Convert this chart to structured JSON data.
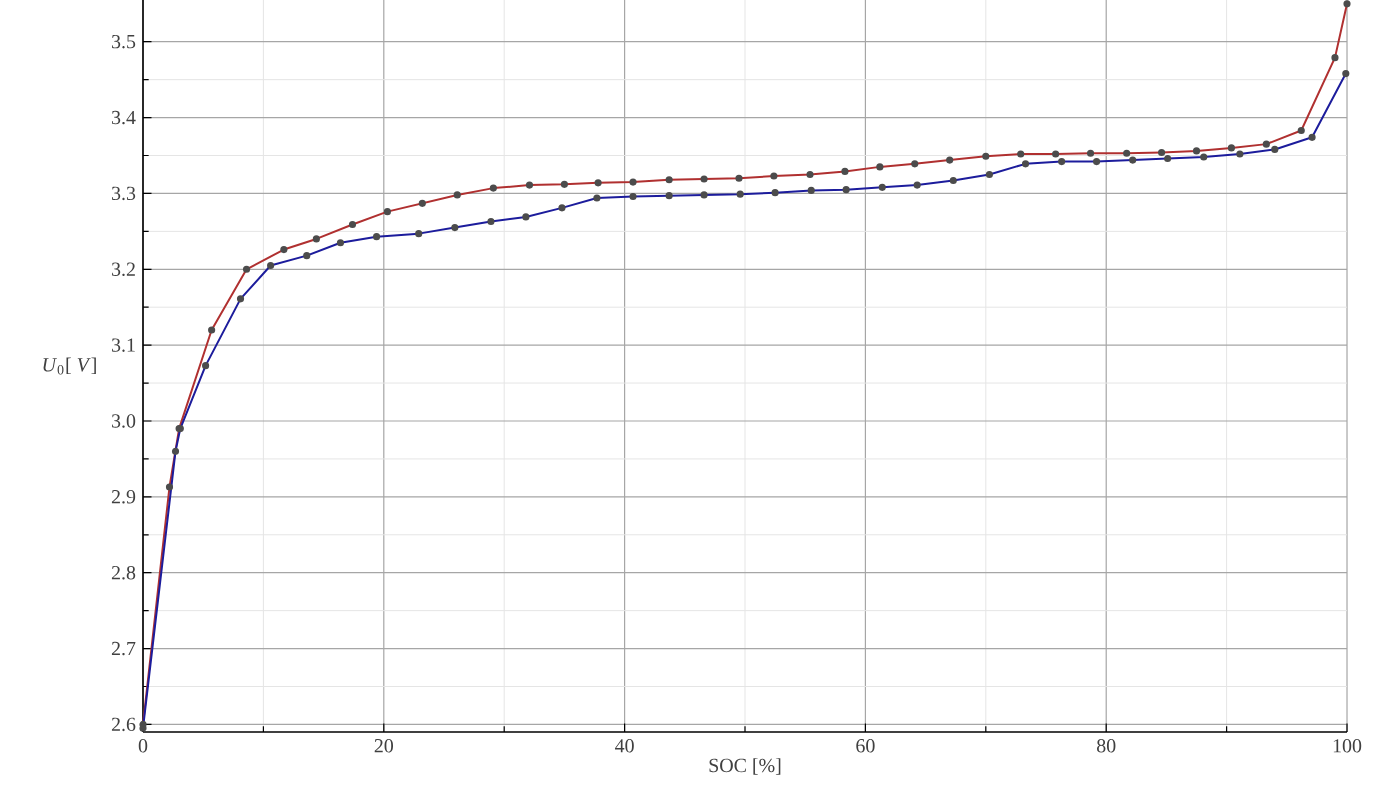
{
  "chart_data": {
    "type": "line",
    "xlabel": "SOC [%]",
    "ylabel": "*U*$_{0}$[ *V*]",
    "xlim": [
      0,
      100
    ],
    "ylim": [
      2.59,
      3.555
    ],
    "xticks": [
      0,
      20,
      40,
      60,
      80,
      100
    ],
    "yticks": [
      {
        "value": 2.6,
        "label": "2.6"
      },
      {
        "value": 2.7,
        "label": "2.7"
      },
      {
        "value": 2.8,
        "label": "2.8"
      },
      {
        "value": 2.9,
        "label": "2.9"
      },
      {
        "value": 3.0,
        "label": "3.0"
      },
      {
        "value": 3.1,
        "label": "3.1"
      },
      {
        "value": 3.2,
        "label": "3.2"
      },
      {
        "value": 3.3,
        "label": "3.3"
      },
      {
        "value": 3.4,
        "label": "3.4"
      },
      {
        "value": 3.5,
        "label": "3.5"
      }
    ],
    "grid": true,
    "marker": "circle",
    "line_style": "solid",
    "series": [
      {
        "color": "#b03030",
        "x": [
          0,
          2.2,
          3.0,
          5.7,
          8.6,
          11.7,
          14.4,
          17.4,
          20.3,
          23.2,
          26.1,
          29.1,
          32.1,
          35.0,
          37.8,
          40.7,
          43.7,
          46.6,
          49.5,
          52.4,
          55.4,
          58.3,
          61.2,
          64.1,
          67.0,
          70.0,
          72.9,
          75.8,
          78.7,
          81.7,
          84.6,
          87.5,
          90.4,
          93.3,
          96.2,
          99.0,
          100
        ],
        "values": [
          2.6,
          2.913,
          2.99,
          3.12,
          3.2,
          3.226,
          3.24,
          3.259,
          3.276,
          3.287,
          3.298,
          3.307,
          3.311,
          3.312,
          3.314,
          3.315,
          3.318,
          3.319,
          3.32,
          3.323,
          3.325,
          3.329,
          3.335,
          3.339,
          3.344,
          3.349,
          3.352,
          3.352,
          3.353,
          3.353,
          3.354,
          3.356,
          3.36,
          3.365,
          3.383,
          3.479,
          3.55
        ]
      },
      {
        "color": "#1c1c9c",
        "x": [
          0,
          2.7,
          3.1,
          5.2,
          8.1,
          10.6,
          13.6,
          16.4,
          19.4,
          22.9,
          25.9,
          28.9,
          31.8,
          34.8,
          37.7,
          40.7,
          43.7,
          46.6,
          49.6,
          52.5,
          55.5,
          58.4,
          61.4,
          64.3,
          67.3,
          70.3,
          73.3,
          76.3,
          79.2,
          82.2,
          85.1,
          88.1,
          91.1,
          94.0,
          97.1,
          99.9
        ],
        "values": [
          2.595,
          2.96,
          2.99,
          3.073,
          3.161,
          3.205,
          3.218,
          3.235,
          3.243,
          3.247,
          3.255,
          3.263,
          3.269,
          3.281,
          3.294,
          3.296,
          3.297,
          3.298,
          3.299,
          3.301,
          3.304,
          3.305,
          3.308,
          3.311,
          3.317,
          3.325,
          3.339,
          3.342,
          3.342,
          3.344,
          3.346,
          3.348,
          3.352,
          3.358,
          3.374,
          3.458
        ]
      }
    ]
  }
}
